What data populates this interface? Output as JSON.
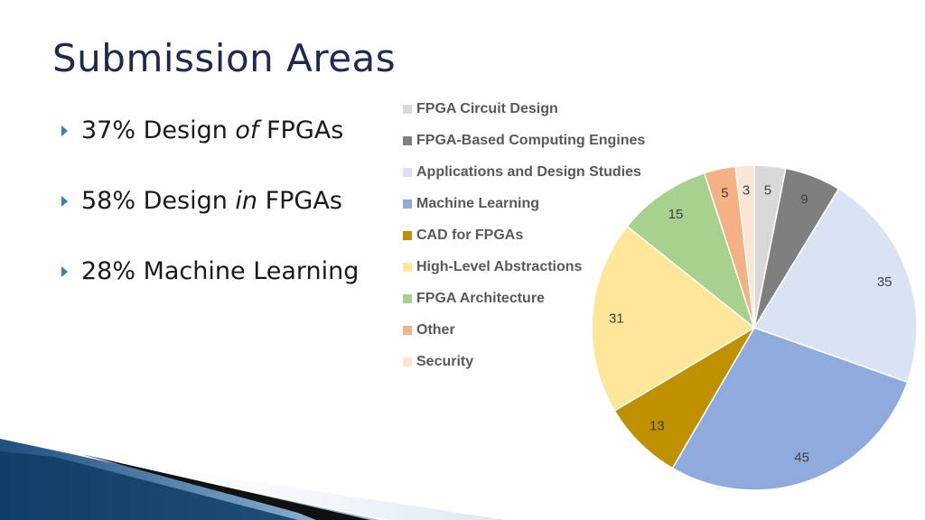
{
  "title": "Submission Areas",
  "bullets": [
    {
      "parts": [
        {
          "text": "37% Design ",
          "italic": false
        },
        {
          "text": "of",
          "italic": true
        },
        {
          "text": " FPGAs",
          "italic": false
        }
      ]
    },
    {
      "parts": [
        {
          "text": "58% Design ",
          "italic": false
        },
        {
          "text": "in",
          "italic": true
        },
        {
          "text": " FPGAs",
          "italic": false
        }
      ]
    },
    {
      "parts": [
        {
          "text": "28% Machine Learning",
          "italic": false
        }
      ]
    }
  ],
  "chart_data": {
    "type": "pie",
    "categories": [
      "FPGA Circuit Design",
      "FPGA-Based Computing Engines",
      "Applications and Design Studies",
      "Machine Learning",
      "CAD for FPGAs",
      "High-Level Abstractions",
      "FPGA Architecture",
      "Other",
      "Security"
    ],
    "values": [
      5,
      9,
      35,
      45,
      13,
      31,
      15,
      5,
      3
    ],
    "colors": [
      "#d9d9d9",
      "#7f7f7f",
      "#dae3f3",
      "#8faadc",
      "#bf9000",
      "#ffe699",
      "#a9d18e",
      "#f4b183",
      "#fbe5d6"
    ],
    "legend_position": "left",
    "start": "top",
    "direction": "clockwise"
  }
}
